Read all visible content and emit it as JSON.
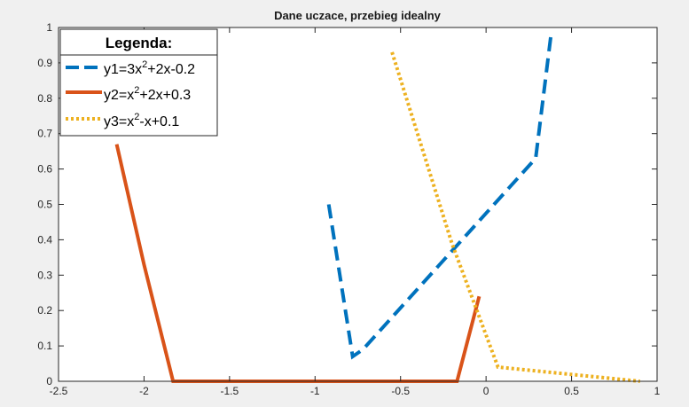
{
  "chart_data": {
    "type": "line",
    "title": "Dane uczace, przebieg idealny",
    "xlabel": "",
    "ylabel": "",
    "xlim": [
      -2.5,
      1
    ],
    "ylim": [
      0,
      1
    ],
    "xticks": [
      -2.5,
      -2,
      -1.5,
      -1,
      -0.5,
      0,
      0.5,
      1
    ],
    "yticks": [
      0,
      0.1,
      0.2,
      0.3,
      0.4,
      0.5,
      0.6,
      0.7,
      0.8,
      0.9,
      1
    ],
    "xtick_labels": [
      "-2.5",
      "-2",
      "-1.5",
      "-1",
      "-0.5",
      "0",
      "0.5",
      "1"
    ],
    "ytick_labels": [
      "0",
      "0.1",
      "0.2",
      "0.3",
      "0.4",
      "0.5",
      "0.6",
      "0.7",
      "0.8",
      "0.9",
      "1"
    ],
    "grid": false,
    "legend": {
      "title": "Legenda:",
      "placement": "top-left",
      "entries": [
        {
          "base": "y1=3x",
          "sup": "2",
          "rest": "+2x-0.2"
        },
        {
          "base": "y2=x",
          "sup": "2",
          "rest": "+2x+0.3"
        },
        {
          "base": "y3=x",
          "sup": "2",
          "rest": "-x+0.1"
        }
      ]
    },
    "series": [
      {
        "color": "#0072BD",
        "style": "dashed",
        "x": [
          -0.92,
          -0.78,
          -0.72,
          0.29,
          0.38
        ],
        "y": [
          0.5,
          0.07,
          0.09,
          0.63,
          0.98
        ]
      },
      {
        "color": "#D95319",
        "style": "solid",
        "x": [
          -2.16,
          -2.0,
          -1.83,
          -0.17,
          -0.04
        ],
        "y": [
          0.67,
          0.33,
          0.0,
          0.0,
          0.24
        ]
      },
      {
        "color": "#EDB120",
        "style": "dotted",
        "x": [
          -0.55,
          -0.2,
          0.07,
          0.9
        ],
        "y": [
          0.93,
          0.39,
          0.04,
          0.0
        ]
      }
    ]
  }
}
